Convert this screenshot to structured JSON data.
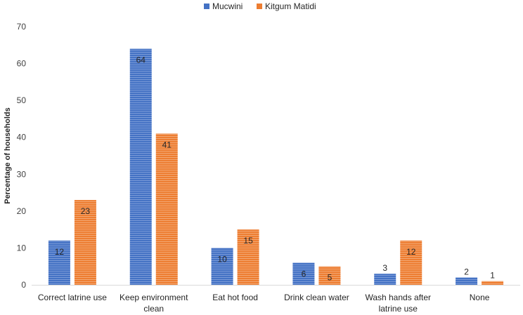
{
  "chart_data": {
    "type": "bar",
    "categories": [
      [
        "Correct latrine use"
      ],
      [
        "Keep environment",
        "clean"
      ],
      [
        "Eat hot food"
      ],
      [
        "Drink clean water"
      ],
      [
        "Wash hands after",
        "latrine use"
      ],
      [
        "None"
      ]
    ],
    "series": [
      {
        "name": "Mucwini",
        "color": "#4472C4",
        "values": [
          12,
          64,
          10,
          6,
          3,
          2
        ]
      },
      {
        "name": "Kitgum Matidi",
        "color": "#ED7D31",
        "values": [
          23,
          41,
          15,
          5,
          12,
          1
        ]
      }
    ],
    "ylabel": "Percentage of households",
    "xlabel": "",
    "ylim": [
      0,
      70
    ],
    "yticks": [
      0,
      10,
      20,
      30,
      40,
      50,
      60,
      70
    ],
    "legend_position": "top-center",
    "grid": false
  }
}
